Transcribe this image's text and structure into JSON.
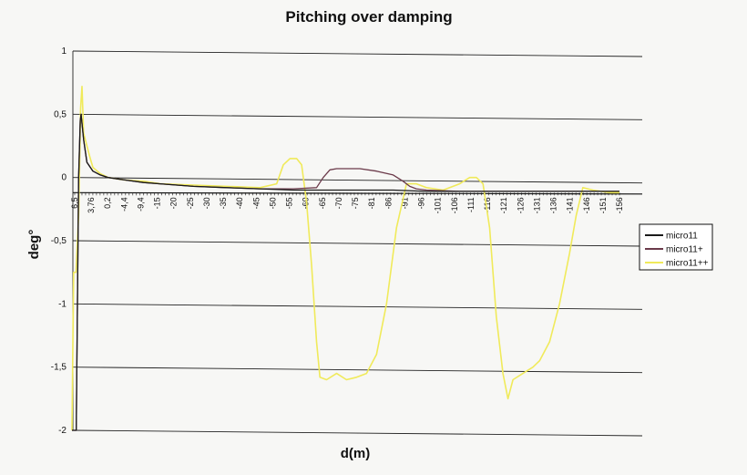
{
  "chart_data": {
    "type": "line",
    "title": "Pitching over damping",
    "xlabel": "d(m)",
    "ylabel": "deg°",
    "ylim": [
      -2,
      1
    ],
    "yticks": [
      "1",
      "0,5",
      "0",
      "-0,5",
      "-1",
      "-1,5",
      "-2"
    ],
    "x_tick_labels": [
      "6,5",
      "3,76",
      "0,2",
      "-4,4",
      "-9,4",
      "-15",
      "-20",
      "-25",
      "-30",
      "-35",
      "-40",
      "-45",
      "-50",
      "-55",
      "-60",
      "-65",
      "-70",
      "-75",
      "-81",
      "-86",
      "-91",
      "-96",
      "-101",
      "-106",
      "-111",
      "-116",
      "-121",
      "-126",
      "-131",
      "-136",
      "-141",
      "-146",
      "-151",
      "-156"
    ],
    "x_axis_position_y": -0.12,
    "grid": "horizontal",
    "legend_position": "right",
    "series": [
      {
        "name": "micro11",
        "color": "#1a1a1a",
        "x": [
          6.5,
          5.2,
          4.5,
          4.0,
          3.76,
          3.0,
          2.0,
          0.2,
          -2,
          -4.4,
          -9.4,
          -15,
          -20,
          -30,
          -40,
          -50,
          -60,
          -70,
          -80,
          -90,
          -100,
          -110,
          -120,
          -130,
          -140,
          -150,
          -158
        ],
        "y": [
          -2,
          -2,
          0.0,
          0.45,
          0.5,
          0.3,
          0.12,
          0.05,
          0.02,
          0.0,
          -0.02,
          -0.04,
          -0.05,
          -0.07,
          -0.08,
          -0.09,
          -0.1,
          -0.1,
          -0.1,
          -0.1,
          -0.11,
          -0.11,
          -0.11,
          -0.11,
          -0.11,
          -0.11,
          -0.11
        ]
      },
      {
        "name": "micro11+",
        "color": "#6b3a4a",
        "x": [
          6.5,
          5.2,
          4.5,
          4.0,
          3.76,
          3.0,
          2.0,
          0.2,
          -2,
          -4.4,
          -9.4,
          -15,
          -20,
          -30,
          -40,
          -50,
          -60,
          -67,
          -69,
          -71,
          -73,
          -75,
          -80,
          -85,
          -90,
          -93,
          -95,
          -97,
          -100,
          -110,
          -120,
          -130,
          -140,
          -150,
          -158
        ],
        "y": [
          -2,
          -2,
          0.0,
          0.45,
          0.5,
          0.3,
          0.12,
          0.05,
          0.02,
          0.0,
          -0.02,
          -0.04,
          -0.05,
          -0.07,
          -0.08,
          -0.09,
          -0.09,
          -0.08,
          0.0,
          0.06,
          0.07,
          0.07,
          0.07,
          0.05,
          0.02,
          -0.03,
          -0.07,
          -0.09,
          -0.1,
          -0.11,
          -0.11,
          -0.11,
          -0.11,
          -0.11,
          -0.11
        ]
      },
      {
        "name": "micro11++",
        "color": "#f0ea5a",
        "x": [
          6.5,
          6.0,
          5.3,
          4.5,
          3.9,
          3.5,
          3.0,
          2.5,
          2.0,
          1.0,
          0.2,
          -2,
          -4.4,
          -9.4,
          -15,
          -20,
          -30,
          -40,
          -50,
          -55,
          -57,
          -59,
          -61,
          -62.5,
          -64,
          -65.5,
          -67,
          -68,
          -70,
          -73,
          -76,
          -79,
          -82,
          -85,
          -88,
          -91,
          -94,
          -97,
          -100,
          -105,
          -110,
          -113,
          -115,
          -117,
          -119,
          -121,
          -123,
          -124.5,
          -126,
          -129,
          -132,
          -134,
          -137,
          -140,
          -143,
          -145,
          -147,
          -150,
          -155,
          -158
        ],
        "y": [
          -2,
          -0.75,
          -0.75,
          -0.3,
          0.55,
          0.72,
          0.35,
          0.3,
          0.25,
          0.15,
          0.08,
          0.03,
          0.0,
          -0.02,
          -0.03,
          -0.05,
          -0.06,
          -0.07,
          -0.08,
          -0.05,
          0.1,
          0.15,
          0.15,
          0.1,
          -0.2,
          -0.7,
          -1.3,
          -1.58,
          -1.6,
          -1.55,
          -1.6,
          -1.58,
          -1.55,
          -1.4,
          -1.0,
          -0.4,
          -0.05,
          -0.05,
          -0.08,
          -0.1,
          -0.05,
          0.0,
          0.0,
          -0.05,
          -0.4,
          -1.1,
          -1.55,
          -1.75,
          -1.6,
          -1.55,
          -1.5,
          -1.45,
          -1.3,
          -1.0,
          -0.6,
          -0.3,
          -0.08,
          -0.1,
          -0.12,
          -0.12
        ]
      }
    ]
  }
}
